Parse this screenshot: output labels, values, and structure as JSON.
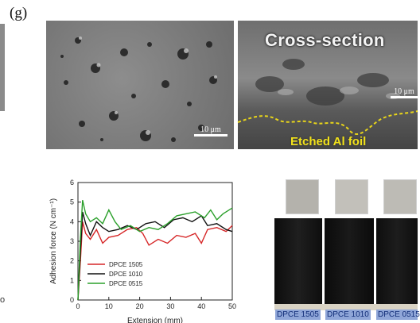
{
  "panel_label": "(g)",
  "sem_top_left": {
    "scale_label": "10 μm"
  },
  "sem_top_right": {
    "title": "Cross-section",
    "scale_label": "10 μm",
    "foil_label": "Etched Al foil"
  },
  "chart_data": {
    "type": "line",
    "xlabel": "Extension (mm)",
    "ylabel": "Adhesion force (N cm⁻¹)",
    "xlim": [
      0,
      50
    ],
    "ylim": [
      0,
      6
    ],
    "xticks": [
      0,
      10,
      20,
      30,
      40,
      50
    ],
    "yticks": [
      0,
      1,
      2,
      3,
      4,
      5,
      6
    ],
    "legend_position": "bottom-left",
    "series": [
      {
        "name": "DPCE  1505",
        "color": "#d62728",
        "x": [
          0,
          0.8,
          1.5,
          2.5,
          4,
          6,
          8,
          10,
          13,
          16,
          19,
          21,
          23,
          26,
          29,
          32,
          35,
          38,
          40,
          42,
          45,
          48,
          50
        ],
        "y": [
          0,
          2.0,
          4.0,
          3.4,
          3.1,
          3.6,
          2.9,
          3.2,
          3.3,
          3.6,
          3.7,
          3.4,
          2.8,
          3.1,
          2.9,
          3.3,
          3.2,
          3.4,
          2.9,
          3.6,
          3.7,
          3.5,
          3.8
        ]
      },
      {
        "name": "DPCE  1010",
        "color": "#111111",
        "x": [
          0,
          0.8,
          1.5,
          2.5,
          4,
          6,
          8,
          10,
          13,
          16,
          19,
          22,
          25,
          28,
          31,
          34,
          37,
          40,
          42,
          45,
          48,
          50
        ],
        "y": [
          0,
          2.5,
          4.5,
          3.9,
          3.3,
          4.0,
          3.7,
          3.5,
          3.6,
          3.8,
          3.6,
          3.9,
          4.0,
          3.7,
          4.1,
          4.2,
          4.0,
          4.3,
          3.8,
          3.9,
          3.6,
          3.5
        ]
      },
      {
        "name": "DPCE  0515",
        "color": "#2ca02c",
        "x": [
          0,
          0.8,
          1.5,
          2.5,
          4,
          6,
          8,
          10,
          12,
          14,
          17,
          20,
          23,
          26,
          29,
          32,
          35,
          38,
          41,
          43,
          45,
          47,
          50
        ],
        "y": [
          0,
          3.2,
          5.1,
          4.4,
          4.0,
          4.2,
          3.9,
          4.6,
          4.0,
          3.6,
          3.8,
          3.5,
          3.7,
          3.6,
          3.9,
          4.3,
          4.4,
          4.5,
          4.2,
          4.6,
          4.1,
          4.4,
          4.7
        ]
      }
    ]
  },
  "photos": {
    "labels": [
      "DPCE 1505",
      "DPCE 1010",
      "DPCE 0515"
    ],
    "fragments": {
      "left_edge": "o"
    }
  }
}
